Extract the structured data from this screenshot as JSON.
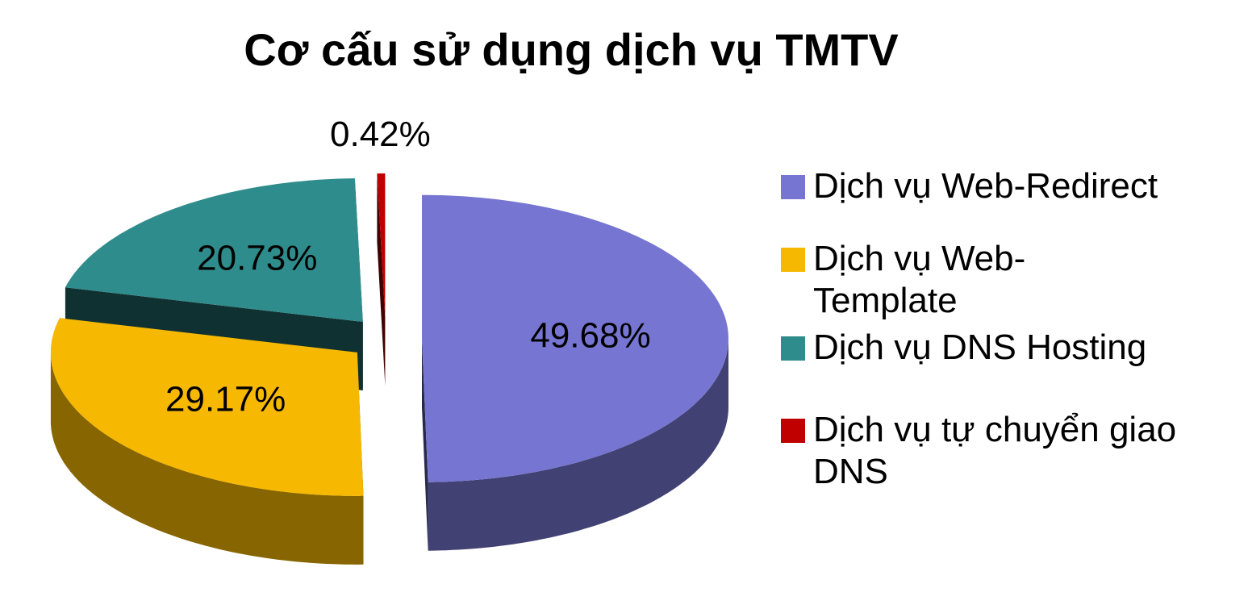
{
  "chart_data": {
    "type": "pie3d",
    "title": "Cơ cấu sử dụng dịch vụ TMTV",
    "categories": [
      "Dịch vụ Web-Redirect",
      "Dịch vụ Web-Template",
      "Dịch vụ DNS Hosting",
      "Dịch vụ tự chuyển giao DNS"
    ],
    "values": [
      49.68,
      29.17,
      20.73,
      0.42
    ],
    "value_labels": [
      "49.68%",
      "29.17%",
      "20.73%",
      "0.42%"
    ],
    "colors": [
      "#7676d2",
      "#f6b800",
      "#2f8c8c",
      "#c00000"
    ],
    "legend": "right"
  }
}
